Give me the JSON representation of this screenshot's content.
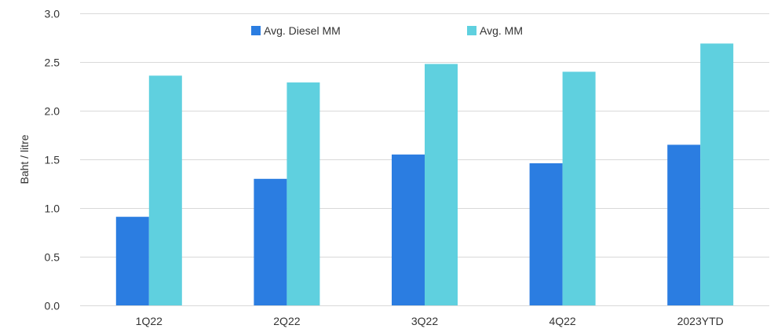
{
  "chart_data": {
    "type": "bar",
    "title": "",
    "xlabel": "",
    "ylabel": "Baht / litre",
    "ylim": [
      0,
      3.0
    ],
    "yticks": [
      "0.0",
      "0.5",
      "1.0",
      "1.5",
      "2.0",
      "2.5",
      "3.0"
    ],
    "grid": true,
    "legend_position": "top-center",
    "categories": [
      "1Q22",
      "2Q22",
      "3Q22",
      "4Q22",
      "2023YTD"
    ],
    "series": [
      {
        "name": "Avg. Diesel MM",
        "color": "#2b7de1",
        "values": [
          0.91,
          1.3,
          1.55,
          1.46,
          1.65
        ]
      },
      {
        "name": "Avg. MM",
        "color": "#5fd0df",
        "values": [
          2.36,
          2.29,
          2.48,
          2.4,
          2.69
        ]
      }
    ]
  }
}
